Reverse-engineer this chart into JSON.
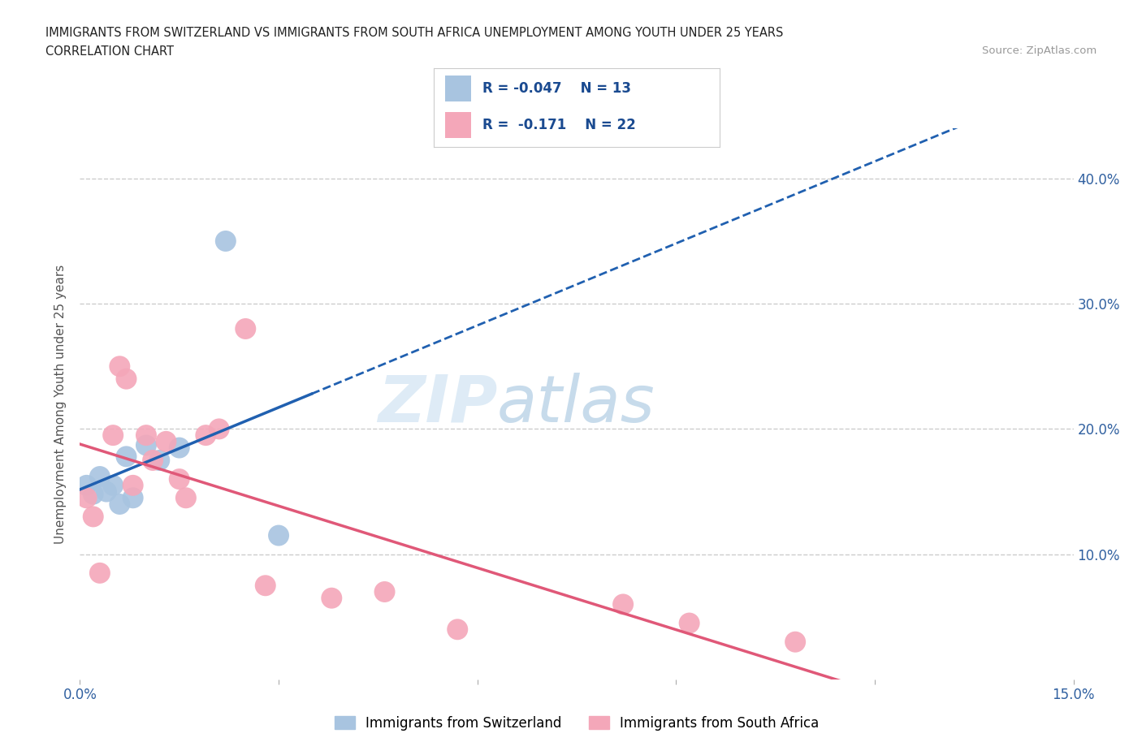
{
  "title_line1": "IMMIGRANTS FROM SWITZERLAND VS IMMIGRANTS FROM SOUTH AFRICA UNEMPLOYMENT AMONG YOUTH UNDER 25 YEARS",
  "title_line2": "CORRELATION CHART",
  "source": "Source: ZipAtlas.com",
  "ylabel": "Unemployment Among Youth under 25 years",
  "xlim": [
    0.0,
    0.15
  ],
  "ylim": [
    0.0,
    0.44
  ],
  "ytick_positions": [
    0.1,
    0.2,
    0.3,
    0.4
  ],
  "ytick_labels_right": [
    "10.0%",
    "20.0%",
    "30.0%",
    "40.0%"
  ],
  "switzerland_x": [
    0.001,
    0.002,
    0.003,
    0.004,
    0.005,
    0.006,
    0.007,
    0.008,
    0.01,
    0.012,
    0.015,
    0.022,
    0.03
  ],
  "switzerland_y": [
    0.155,
    0.148,
    0.162,
    0.15,
    0.155,
    0.14,
    0.178,
    0.145,
    0.187,
    0.175,
    0.185,
    0.35,
    0.115
  ],
  "south_africa_x": [
    0.001,
    0.002,
    0.003,
    0.005,
    0.006,
    0.007,
    0.008,
    0.01,
    0.011,
    0.013,
    0.015,
    0.016,
    0.019,
    0.021,
    0.025,
    0.028,
    0.038,
    0.046,
    0.057,
    0.082,
    0.092,
    0.108
  ],
  "south_africa_y": [
    0.145,
    0.13,
    0.085,
    0.195,
    0.25,
    0.24,
    0.155,
    0.195,
    0.175,
    0.19,
    0.16,
    0.145,
    0.195,
    0.2,
    0.28,
    0.075,
    0.065,
    0.07,
    0.04,
    0.06,
    0.045,
    0.03
  ],
  "switzerland_color": "#a8c4e0",
  "south_africa_color": "#f4a7b9",
  "switzerland_line_color": "#2060b0",
  "south_africa_line_color": "#e05878",
  "R_switzerland": -0.047,
  "N_switzerland": 13,
  "R_south_africa": -0.171,
  "N_south_africa": 22,
  "legend_label_switzerland": "Immigrants from Switzerland",
  "legend_label_south_africa": "Immigrants from South Africa",
  "watermark_zip": "ZIP",
  "watermark_atlas": "atlas",
  "background_color": "#ffffff",
  "grid_color": "#cccccc"
}
